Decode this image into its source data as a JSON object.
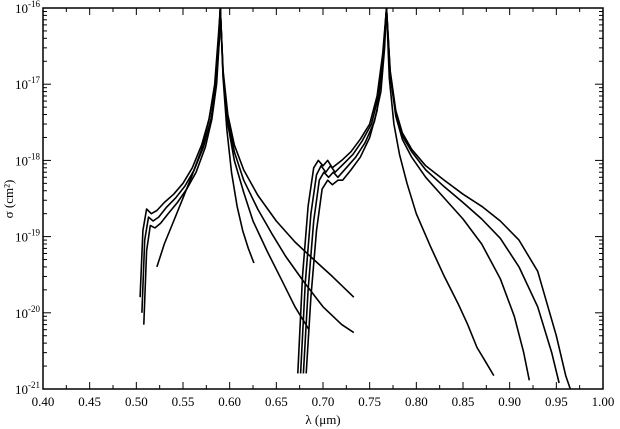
{
  "chart_data": {
    "type": "line",
    "title": "",
    "xlabel": "λ (μm)",
    "ylabel": "σ (cm²)",
    "xlim": [
      0.4,
      1.0
    ],
    "ylim": [
      1e-21,
      1e-16
    ],
    "yscale": "log",
    "grid": false,
    "x_ticks": [
      "0.40",
      "0.45",
      "0.50",
      "0.55",
      "0.60",
      "0.65",
      "0.70",
      "0.75",
      "0.80",
      "0.85",
      "0.90",
      "0.95",
      "1.00"
    ],
    "y_ticks": [
      {
        "base": "10",
        "exp": "-21"
      },
      {
        "base": "10",
        "exp": "-20"
      },
      {
        "base": "10",
        "exp": "-19"
      },
      {
        "base": "10",
        "exp": "-18"
      },
      {
        "base": "10",
        "exp": "-17"
      },
      {
        "base": "10",
        "exp": "-16"
      }
    ],
    "series": [
      {
        "segments": [
          {
            "x": [
              0.504,
              0.507,
              0.511,
              0.516,
              0.522,
              0.53,
              0.54,
              0.55,
              0.56,
              0.57,
              0.578,
              0.584,
              0.588,
              0.59
            ],
            "y": [
              1.6e-20,
              1.2e-19,
              2.3e-19,
              2e-19,
              2.2e-19,
              2.8e-19,
              3.6e-19,
              5e-19,
              8e-19,
              1.6e-18,
              3.5e-18,
              9e-18,
              3.5e-17,
              1e-16
            ]
          },
          {
            "x": [
              0.59,
              0.593,
              0.598,
              0.605,
              0.615,
              0.63,
              0.65,
              0.67,
              0.69,
              0.71,
              0.733
            ],
            "y": [
              1e-16,
              1.5e-17,
              4e-18,
              1.6e-18,
              7.5e-19,
              3.5e-19,
              1.6e-19,
              8.5e-20,
              5e-20,
              3e-20,
              1.6e-20
            ]
          },
          {
            "x": [
              0.673,
              0.678,
              0.684,
              0.69,
              0.695,
              0.7,
              0.705,
              0.71,
              0.72,
              0.73,
              0.74,
              0.75,
              0.758,
              0.764,
              0.768
            ],
            "y": [
              1.6e-21,
              3e-20,
              2.5e-19,
              8e-19,
              1e-18,
              8.5e-19,
              1e-18,
              8e-19,
              1e-18,
              1.3e-18,
              1.9e-18,
              3e-18,
              7e-18,
              2.5e-17,
              1e-16
            ]
          },
          {
            "x": [
              0.768,
              0.772,
              0.778,
              0.785,
              0.795,
              0.81,
              0.83,
              0.85,
              0.87,
              0.89,
              0.91,
              0.93,
              0.95,
              0.96,
              0.965
            ],
            "y": [
              1e-16,
              1.5e-17,
              4.5e-18,
              2.3e-18,
              1.4e-18,
              8.5e-19,
              5.5e-19,
              3.6e-19,
              2.5e-19,
              1.6e-19,
              9e-20,
              3.5e-20,
              5e-21,
              1.5e-21,
              1e-21
            ]
          }
        ]
      },
      {
        "segments": [
          {
            "x": [
              0.506,
              0.509,
              0.513,
              0.518,
              0.524,
              0.532,
              0.542,
              0.552,
              0.562,
              0.572,
              0.58,
              0.585,
              0.589,
              0.59
            ],
            "y": [
              1e-20,
              9e-20,
              1.8e-19,
              1.6e-19,
              1.8e-19,
              2.4e-19,
              3.2e-19,
              4.6e-19,
              7.5e-19,
              1.5e-18,
              3.5e-18,
              9e-18,
              4e-17,
              1e-16
            ]
          },
          {
            "x": [
              0.59,
              0.593,
              0.598,
              0.605,
              0.615,
              0.63,
              0.645,
              0.66,
              0.68,
              0.7,
              0.72,
              0.733
            ],
            "y": [
              1e-16,
              1.4e-17,
              3.5e-18,
              1.3e-18,
              5.5e-19,
              2.3e-19,
              1.1e-19,
              5.5e-20,
              2.5e-20,
              1.2e-20,
              7e-21,
              5.5e-21
            ]
          },
          {
            "x": [
              0.676,
              0.681,
              0.687,
              0.693,
              0.698,
              0.703,
              0.708,
              0.713,
              0.722,
              0.732,
              0.742,
              0.752,
              0.76,
              0.765,
              0.768
            ],
            "y": [
              1.6e-21,
              2.5e-20,
              2e-19,
              6.5e-19,
              8.5e-19,
              7e-19,
              8.5e-19,
              7e-19,
              9e-19,
              1.2e-18,
              1.8e-18,
              3e-18,
              7.5e-18,
              3e-17,
              1e-16
            ]
          },
          {
            "x": [
              0.768,
              0.772,
              0.778,
              0.785,
              0.795,
              0.81,
              0.83,
              0.85,
              0.87,
              0.89,
              0.91,
              0.93,
              0.945,
              0.953
            ],
            "y": [
              1e-16,
              1.4e-17,
              4.2e-18,
              2.1e-18,
              1.3e-18,
              7.5e-19,
              4.5e-19,
              2.8e-19,
              1.7e-19,
              9.5e-20,
              4e-20,
              1.2e-20,
              3e-21,
              1.2e-21
            ]
          }
        ]
      },
      {
        "segments": [
          {
            "x": [
              0.508,
              0.511,
              0.515,
              0.52,
              0.526,
              0.534,
              0.544,
              0.554,
              0.564,
              0.574,
              0.581,
              0.586,
              0.589,
              0.59
            ],
            "y": [
              7e-21,
              6.5e-20,
              1.4e-19,
              1.3e-19,
              1.5e-19,
              2e-19,
              2.8e-19,
              4.2e-19,
              7e-19,
              1.5e-18,
              3.5e-18,
              1e-17,
              4e-17,
              1e-16
            ]
          },
          {
            "x": [
              0.59,
              0.593,
              0.598,
              0.605,
              0.615,
              0.625,
              0.64,
              0.655,
              0.67,
              0.685
            ],
            "y": [
              1e-16,
              1.3e-17,
              3e-18,
              1e-18,
              3.8e-19,
              1.6e-19,
              6.5e-20,
              2.8e-20,
              1.2e-20,
              6e-21
            ]
          },
          {
            "x": [
              0.679,
              0.684,
              0.69,
              0.696,
              0.701,
              0.706,
              0.711,
              0.716,
              0.725,
              0.735,
              0.745,
              0.755,
              0.762,
              0.766,
              0.768
            ],
            "y": [
              1.6e-21,
              2e-20,
              1.6e-19,
              5.5e-19,
              7e-19,
              6e-19,
              7e-19,
              6e-19,
              8e-19,
              1.1e-18,
              1.7e-18,
              3.2e-18,
              8e-18,
              3e-17,
              1e-16
            ]
          },
          {
            "x": [
              0.768,
              0.772,
              0.778,
              0.785,
              0.795,
              0.81,
              0.83,
              0.85,
              0.87,
              0.89,
              0.905,
              0.915,
              0.921
            ],
            "y": [
              1e-16,
              1.3e-17,
              3.8e-18,
              1.9e-18,
              1.1e-18,
              6e-19,
              3.2e-19,
              1.7e-19,
              8e-20,
              2.8e-20,
              9e-21,
              3e-21,
              1.3e-21
            ]
          }
        ]
      },
      {
        "segments": [
          {
            "x": [
              0.522,
              0.53,
              0.54,
              0.55,
              0.56,
              0.57,
              0.578,
              0.584,
              0.588,
              0.59
            ],
            "y": [
              4e-20,
              8e-20,
              1.6e-19,
              3.2e-19,
              6.5e-19,
              1.4e-18,
              3.5e-18,
              1e-17,
              4.5e-17,
              1e-16
            ]
          },
          {
            "x": [
              0.59,
              0.593,
              0.597,
              0.602,
              0.608,
              0.614,
              0.62,
              0.626
            ],
            "y": [
              1e-16,
              1.2e-17,
              2.5e-18,
              7e-19,
              2.5e-19,
              1.2e-19,
              7e-20,
              4.5e-20
            ]
          },
          {
            "x": [
              0.682,
              0.687,
              0.693,
              0.699,
              0.705,
              0.71,
              0.716,
              0.721,
              0.73,
              0.74,
              0.75,
              0.758,
              0.764,
              0.768
            ],
            "y": [
              1.6e-21,
              1.6e-20,
              1.2e-19,
              4.2e-19,
              5.5e-19,
              4.8e-19,
              5.5e-19,
              5.5e-19,
              7.5e-19,
              1.1e-18,
              2e-18,
              4.5e-18,
              2e-17,
              1e-16
            ]
          },
          {
            "x": [
              0.768,
              0.771,
              0.776,
              0.782,
              0.79,
              0.8,
              0.815,
              0.83,
              0.845,
              0.855,
              0.865,
              0.875,
              0.883
            ],
            "y": [
              1e-16,
              1.2e-17,
              3e-18,
              1.2e-18,
              5e-19,
              2e-19,
              7.5e-20,
              3e-20,
              1.3e-20,
              7e-21,
              3.5e-21,
              2.2e-21,
              1.5e-21
            ]
          }
        ]
      }
    ]
  }
}
